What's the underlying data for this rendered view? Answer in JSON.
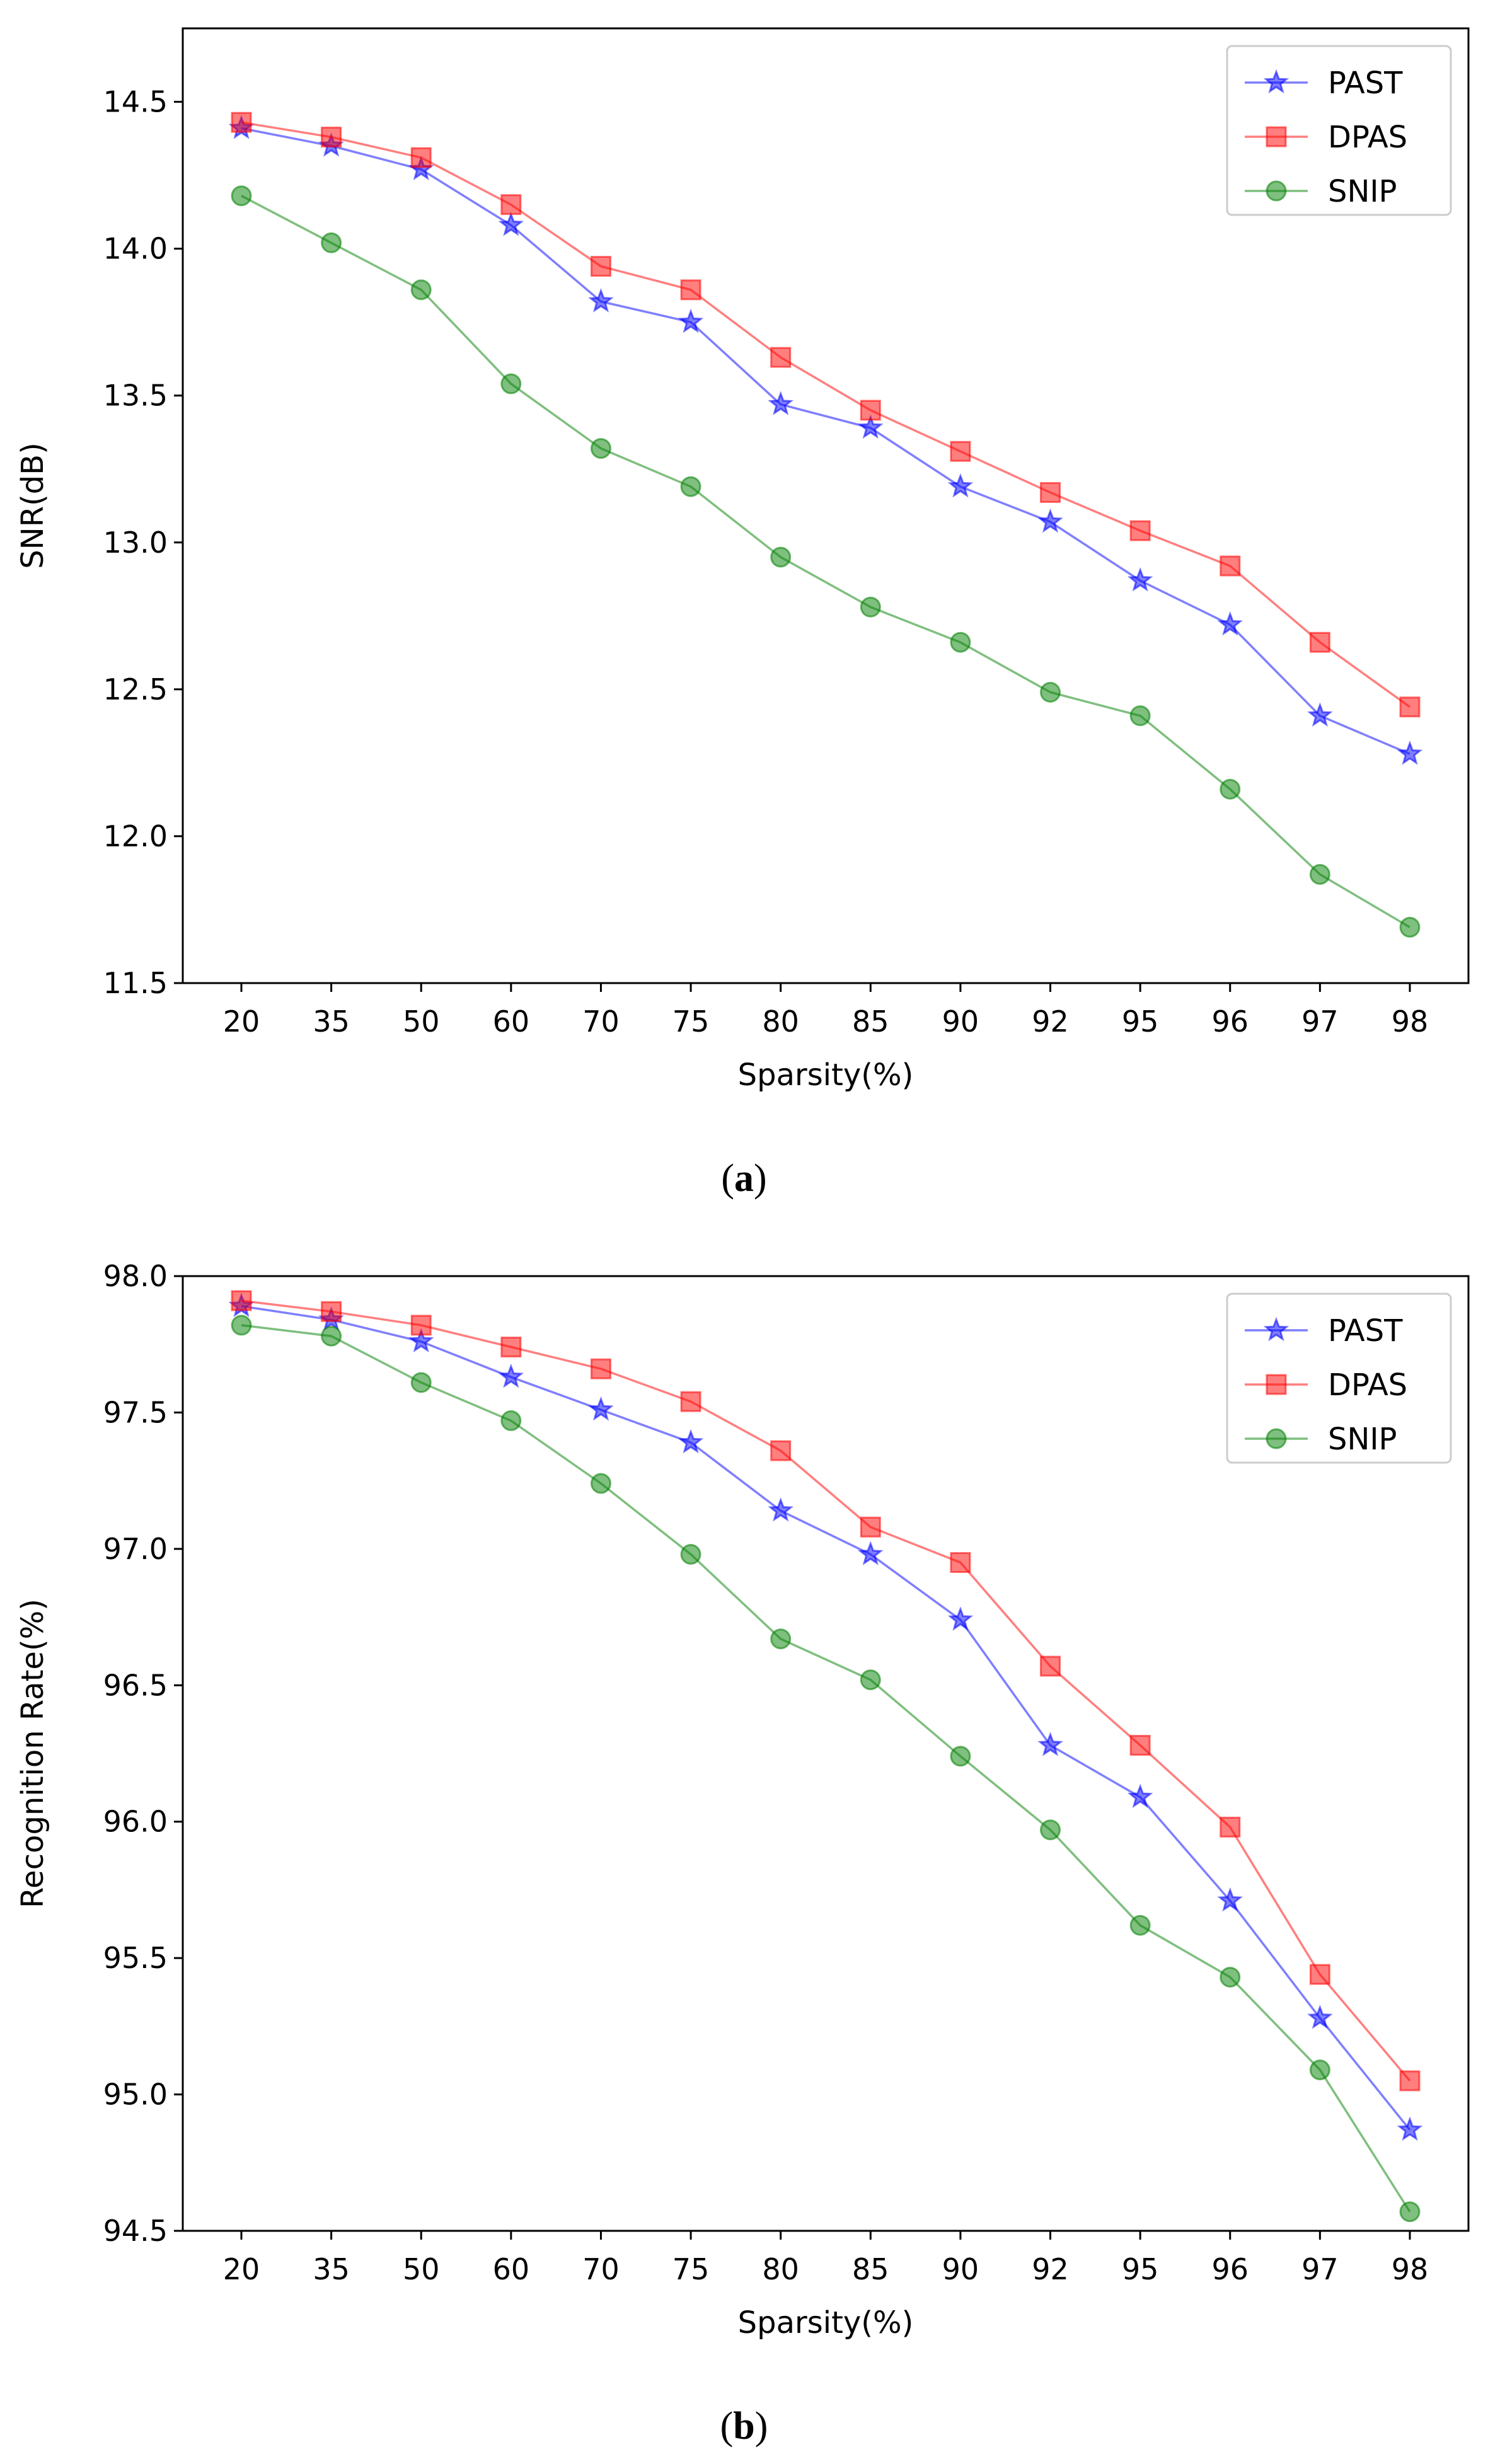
{
  "chart_data": [
    {
      "type": "line",
      "label": "a",
      "title": "",
      "xlabel": "Sparsity(%)",
      "ylabel": "SNR(dB)",
      "categories": [
        "20",
        "35",
        "50",
        "60",
        "70",
        "75",
        "80",
        "85",
        "90",
        "92",
        "95",
        "96",
        "97",
        "98"
      ],
      "ylim": [
        11.5,
        14.75
      ],
      "yticks": [
        "11.5",
        "12.0",
        "12.5",
        "13.0",
        "13.5",
        "14.0",
        "14.5"
      ],
      "legend_position": "top-right",
      "grid": false,
      "series": [
        {
          "name": "PAST",
          "marker": "star",
          "color": "#0000ff",
          "values": [
            14.41,
            14.35,
            14.27,
            14.08,
            13.82,
            13.75,
            13.47,
            13.39,
            13.19,
            13.07,
            12.87,
            12.72,
            12.41,
            12.28
          ]
        },
        {
          "name": "DPAS",
          "marker": "square",
          "color": "#ff0000",
          "values": [
            14.43,
            14.38,
            14.31,
            14.15,
            13.94,
            13.86,
            13.63,
            13.45,
            13.31,
            13.17,
            13.04,
            12.92,
            12.66,
            12.44
          ]
        },
        {
          "name": "SNIP",
          "marker": "circle",
          "color": "#008000",
          "values": [
            14.18,
            14.02,
            13.86,
            13.54,
            13.32,
            13.19,
            12.95,
            12.78,
            12.66,
            12.49,
            12.41,
            12.16,
            11.87,
            11.69
          ]
        }
      ]
    },
    {
      "type": "line",
      "label": "b",
      "title": "",
      "xlabel": "Sparsity(%)",
      "ylabel": "Recognition Rate(%)",
      "categories": [
        "20",
        "35",
        "50",
        "60",
        "70",
        "75",
        "80",
        "85",
        "90",
        "92",
        "95",
        "96",
        "97",
        "98"
      ],
      "ylim": [
        94.5,
        98.0
      ],
      "yticks": [
        "94.5",
        "95.0",
        "95.5",
        "96.0",
        "96.5",
        "97.0",
        "97.5",
        "98.0"
      ],
      "legend_position": "top-right",
      "grid": false,
      "series": [
        {
          "name": "PAST",
          "marker": "star",
          "color": "#0000ff",
          "values": [
            97.89,
            97.84,
            97.76,
            97.63,
            97.51,
            97.39,
            97.14,
            96.98,
            96.74,
            96.28,
            96.09,
            95.71,
            95.28,
            94.87
          ]
        },
        {
          "name": "DPAS",
          "marker": "square",
          "color": "#ff0000",
          "values": [
            97.91,
            97.87,
            97.82,
            97.74,
            97.66,
            97.54,
            97.36,
            97.08,
            96.95,
            96.57,
            96.28,
            95.98,
            95.44,
            95.05
          ]
        },
        {
          "name": "SNIP",
          "marker": "circle",
          "color": "#008000",
          "values": [
            97.82,
            97.78,
            97.61,
            97.47,
            97.24,
            96.98,
            96.67,
            96.52,
            96.24,
            95.97,
            95.62,
            95.43,
            95.09,
            94.57
          ]
        }
      ]
    }
  ]
}
